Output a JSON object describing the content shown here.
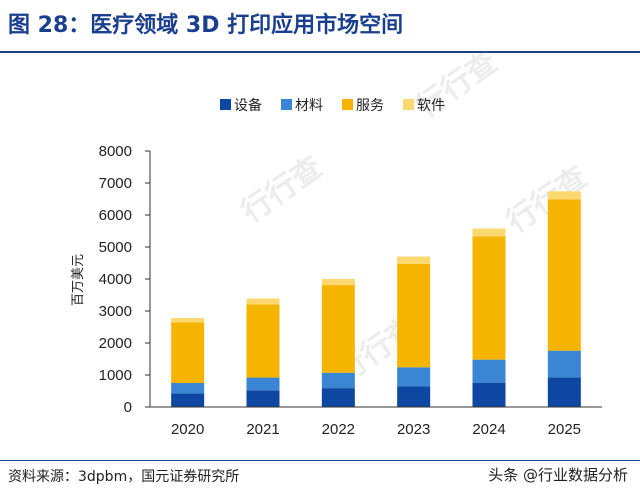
{
  "figure_title": "图 28：医疗领域 3D 打印应用市场空间",
  "source": "资料来源：3dpbm，国元证券研究所",
  "watermark_credit": "头条 @行业数据分析",
  "watermark_logo": "行行查",
  "chart_data": {
    "type": "bar",
    "stacked": true,
    "categories": [
      "2020",
      "2021",
      "2022",
      "2023",
      "2024",
      "2025"
    ],
    "series": [
      {
        "name": "设备",
        "color": "#0d47a1",
        "values": [
          420,
          520,
          590,
          640,
          760,
          920
        ]
      },
      {
        "name": "材料",
        "color": "#3a86d4",
        "values": [
          330,
          400,
          480,
          600,
          720,
          840
        ]
      },
      {
        "name": "服务",
        "color": "#f5b400",
        "values": [
          1890,
          2290,
          2740,
          3230,
          3850,
          4730
        ]
      },
      {
        "name": "软件",
        "color": "#fbd970",
        "values": [
          140,
          180,
          190,
          230,
          250,
          250
        ]
      }
    ],
    "ylabel": "百万美元",
    "ylim": [
      0,
      8000
    ],
    "yticks": [
      0,
      1000,
      2000,
      3000,
      4000,
      5000,
      6000,
      7000,
      8000
    ],
    "grid": false,
    "legend_position": "top"
  }
}
